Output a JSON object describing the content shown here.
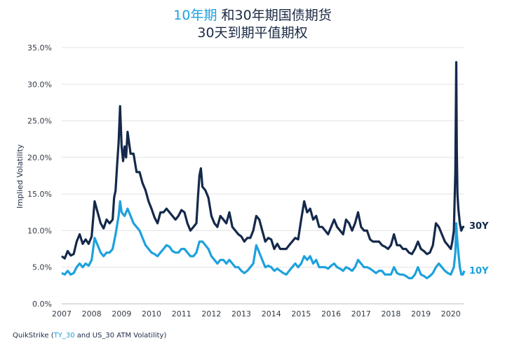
{
  "title": {
    "line1_highlight": "10年期",
    "line1_rest": " 和30年期国债期货",
    "line2": "30天到期平值期权"
  },
  "source": {
    "prefix": "QuikStrike (",
    "highlight": "TY_30",
    "suffix": " and US_30 ATM Volatility)"
  },
  "colors": {
    "series_30y": "#14294b",
    "series_10y": "#1da1dd",
    "grid": "#e3e3e3"
  },
  "chart_data": {
    "type": "line",
    "title": "10年期 和30年期国债期货 30天到期平值期权",
    "xlabel": "",
    "ylabel": "Implied Volatility",
    "xlim": [
      2007.0,
      2020.45
    ],
    "ylim": [
      0,
      35
    ],
    "x_ticks": [
      "2007",
      "2008",
      "2009",
      "2010",
      "2011",
      "2012",
      "2013",
      "2014",
      "2015",
      "2016",
      "2017",
      "2018",
      "2019",
      "2020"
    ],
    "y_ticks": [
      "0.0%",
      "5.0%",
      "10.0%",
      "15.0%",
      "20.0%",
      "25.0%",
      "30.0%",
      "35.0%"
    ],
    "grid": true,
    "series": [
      {
        "name": "30Y",
        "color": "#14294b",
        "points": [
          [
            2007.0,
            6.5
          ],
          [
            2007.1,
            6.2
          ],
          [
            2007.2,
            7.2
          ],
          [
            2007.3,
            6.6
          ],
          [
            2007.4,
            6.8
          ],
          [
            2007.5,
            8.5
          ],
          [
            2007.6,
            9.5
          ],
          [
            2007.7,
            8.2
          ],
          [
            2007.8,
            8.8
          ],
          [
            2007.9,
            8.2
          ],
          [
            2008.0,
            9.2
          ],
          [
            2008.1,
            14.0
          ],
          [
            2008.2,
            12.5
          ],
          [
            2008.3,
            11.0
          ],
          [
            2008.4,
            10.3
          ],
          [
            2008.5,
            11.5
          ],
          [
            2008.6,
            11.0
          ],
          [
            2008.7,
            11.5
          ],
          [
            2008.75,
            14.5
          ],
          [
            2008.8,
            15.5
          ],
          [
            2008.85,
            19.0
          ],
          [
            2008.9,
            22.0
          ],
          [
            2008.95,
            27.0
          ],
          [
            2009.0,
            21.5
          ],
          [
            2009.05,
            19.5
          ],
          [
            2009.1,
            21.5
          ],
          [
            2009.15,
            20.0
          ],
          [
            2009.2,
            23.5
          ],
          [
            2009.3,
            20.5
          ],
          [
            2009.4,
            20.5
          ],
          [
            2009.5,
            18.0
          ],
          [
            2009.6,
            18.0
          ],
          [
            2009.7,
            16.5
          ],
          [
            2009.8,
            15.5
          ],
          [
            2009.9,
            14.0
          ],
          [
            2010.0,
            13.0
          ],
          [
            2010.1,
            11.8
          ],
          [
            2010.2,
            11.0
          ],
          [
            2010.3,
            12.5
          ],
          [
            2010.4,
            12.5
          ],
          [
            2010.5,
            13.0
          ],
          [
            2010.6,
            12.5
          ],
          [
            2010.7,
            12.0
          ],
          [
            2010.8,
            11.5
          ],
          [
            2010.9,
            12.0
          ],
          [
            2011.0,
            12.8
          ],
          [
            2011.1,
            12.5
          ],
          [
            2011.2,
            11.0
          ],
          [
            2011.3,
            10.0
          ],
          [
            2011.4,
            10.5
          ],
          [
            2011.5,
            11.0
          ],
          [
            2011.55,
            14.5
          ],
          [
            2011.6,
            17.5
          ],
          [
            2011.65,
            18.5
          ],
          [
            2011.7,
            16.0
          ],
          [
            2011.8,
            15.5
          ],
          [
            2011.9,
            14.5
          ],
          [
            2012.0,
            12.0
          ],
          [
            2012.1,
            11.0
          ],
          [
            2012.2,
            10.5
          ],
          [
            2012.3,
            12.0
          ],
          [
            2012.4,
            11.5
          ],
          [
            2012.5,
            11.0
          ],
          [
            2012.6,
            12.5
          ],
          [
            2012.7,
            10.5
          ],
          [
            2012.8,
            10.0
          ],
          [
            2012.9,
            9.5
          ],
          [
            2013.0,
            9.2
          ],
          [
            2013.1,
            8.5
          ],
          [
            2013.2,
            9.0
          ],
          [
            2013.3,
            9.0
          ],
          [
            2013.4,
            10.0
          ],
          [
            2013.5,
            12.0
          ],
          [
            2013.6,
            11.5
          ],
          [
            2013.7,
            10.0
          ],
          [
            2013.8,
            8.5
          ],
          [
            2013.9,
            9.0
          ],
          [
            2014.0,
            8.8
          ],
          [
            2014.1,
            7.5
          ],
          [
            2014.2,
            8.2
          ],
          [
            2014.3,
            7.5
          ],
          [
            2014.4,
            7.5
          ],
          [
            2014.5,
            7.5
          ],
          [
            2014.6,
            8.0
          ],
          [
            2014.7,
            8.5
          ],
          [
            2014.8,
            9.0
          ],
          [
            2014.9,
            8.8
          ],
          [
            2015.0,
            11.5
          ],
          [
            2015.1,
            14.0
          ],
          [
            2015.2,
            12.5
          ],
          [
            2015.3,
            13.0
          ],
          [
            2015.4,
            11.5
          ],
          [
            2015.5,
            12.0
          ],
          [
            2015.6,
            10.5
          ],
          [
            2015.7,
            10.5
          ],
          [
            2015.8,
            10.0
          ],
          [
            2015.9,
            9.5
          ],
          [
            2016.0,
            10.5
          ],
          [
            2016.1,
            11.5
          ],
          [
            2016.2,
            10.5
          ],
          [
            2016.3,
            10.0
          ],
          [
            2016.4,
            9.5
          ],
          [
            2016.5,
            11.5
          ],
          [
            2016.6,
            11.0
          ],
          [
            2016.7,
            10.0
          ],
          [
            2016.8,
            11.0
          ],
          [
            2016.9,
            12.5
          ],
          [
            2017.0,
            10.5
          ],
          [
            2017.1,
            10.0
          ],
          [
            2017.2,
            10.0
          ],
          [
            2017.3,
            8.8
          ],
          [
            2017.4,
            8.5
          ],
          [
            2017.5,
            8.5
          ],
          [
            2017.6,
            8.5
          ],
          [
            2017.7,
            8.0
          ],
          [
            2017.8,
            7.8
          ],
          [
            2017.9,
            7.5
          ],
          [
            2018.0,
            8.0
          ],
          [
            2018.1,
            9.5
          ],
          [
            2018.2,
            8.0
          ],
          [
            2018.3,
            8.0
          ],
          [
            2018.4,
            7.5
          ],
          [
            2018.5,
            7.5
          ],
          [
            2018.6,
            7.0
          ],
          [
            2018.7,
            6.8
          ],
          [
            2018.8,
            7.5
          ],
          [
            2018.9,
            8.5
          ],
          [
            2019.0,
            7.5
          ],
          [
            2019.1,
            7.2
          ],
          [
            2019.2,
            6.8
          ],
          [
            2019.3,
            7.0
          ],
          [
            2019.4,
            8.0
          ],
          [
            2019.5,
            11.0
          ],
          [
            2019.6,
            10.5
          ],
          [
            2019.7,
            9.5
          ],
          [
            2019.8,
            8.5
          ],
          [
            2019.9,
            8.0
          ],
          [
            2020.0,
            7.5
          ],
          [
            2020.05,
            8.5
          ],
          [
            2020.1,
            10.0
          ],
          [
            2020.15,
            18.0
          ],
          [
            2020.18,
            33.0
          ],
          [
            2020.2,
            21.0
          ],
          [
            2020.22,
            15.0
          ],
          [
            2020.25,
            13.0
          ],
          [
            2020.3,
            11.0
          ],
          [
            2020.35,
            10.0
          ],
          [
            2020.4,
            10.5
          ],
          [
            2020.45,
            10.5
          ]
        ]
      },
      {
        "name": "10Y",
        "color": "#1da1dd",
        "points": [
          [
            2007.0,
            4.2
          ],
          [
            2007.1,
            4.0
          ],
          [
            2007.2,
            4.5
          ],
          [
            2007.3,
            4.0
          ],
          [
            2007.4,
            4.2
          ],
          [
            2007.5,
            5.0
          ],
          [
            2007.6,
            5.5
          ],
          [
            2007.7,
            5.0
          ],
          [
            2007.8,
            5.5
          ],
          [
            2007.9,
            5.2
          ],
          [
            2008.0,
            6.0
          ],
          [
            2008.1,
            9.0
          ],
          [
            2008.2,
            8.0
          ],
          [
            2008.3,
            7.0
          ],
          [
            2008.4,
            6.5
          ],
          [
            2008.5,
            7.0
          ],
          [
            2008.6,
            7.0
          ],
          [
            2008.7,
            7.5
          ],
          [
            2008.8,
            9.5
          ],
          [
            2008.9,
            12.0
          ],
          [
            2008.95,
            14.0
          ],
          [
            2009.0,
            12.5
          ],
          [
            2009.1,
            12.0
          ],
          [
            2009.2,
            13.0
          ],
          [
            2009.3,
            12.0
          ],
          [
            2009.4,
            11.0
          ],
          [
            2009.5,
            10.5
          ],
          [
            2009.6,
            10.0
          ],
          [
            2009.7,
            9.0
          ],
          [
            2009.8,
            8.0
          ],
          [
            2009.9,
            7.5
          ],
          [
            2010.0,
            7.0
          ],
          [
            2010.1,
            6.8
          ],
          [
            2010.2,
            6.5
          ],
          [
            2010.3,
            7.0
          ],
          [
            2010.4,
            7.5
          ],
          [
            2010.5,
            8.0
          ],
          [
            2010.6,
            7.8
          ],
          [
            2010.7,
            7.2
          ],
          [
            2010.8,
            7.0
          ],
          [
            2010.9,
            7.0
          ],
          [
            2011.0,
            7.5
          ],
          [
            2011.1,
            7.5
          ],
          [
            2011.2,
            7.0
          ],
          [
            2011.3,
            6.5
          ],
          [
            2011.4,
            6.5
          ],
          [
            2011.5,
            7.0
          ],
          [
            2011.6,
            8.5
          ],
          [
            2011.7,
            8.5
          ],
          [
            2011.8,
            8.0
          ],
          [
            2011.9,
            7.5
          ],
          [
            2012.0,
            6.5
          ],
          [
            2012.1,
            6.0
          ],
          [
            2012.2,
            5.5
          ],
          [
            2012.3,
            6.0
          ],
          [
            2012.4,
            6.0
          ],
          [
            2012.5,
            5.5
          ],
          [
            2012.6,
            6.0
          ],
          [
            2012.7,
            5.5
          ],
          [
            2012.8,
            5.0
          ],
          [
            2012.9,
            5.0
          ],
          [
            2013.0,
            4.5
          ],
          [
            2013.1,
            4.2
          ],
          [
            2013.2,
            4.5
          ],
          [
            2013.3,
            5.0
          ],
          [
            2013.4,
            5.5
          ],
          [
            2013.5,
            8.0
          ],
          [
            2013.6,
            7.0
          ],
          [
            2013.7,
            6.0
          ],
          [
            2013.8,
            5.0
          ],
          [
            2013.9,
            5.2
          ],
          [
            2014.0,
            5.0
          ],
          [
            2014.1,
            4.5
          ],
          [
            2014.2,
            4.8
          ],
          [
            2014.3,
            4.5
          ],
          [
            2014.4,
            4.2
          ],
          [
            2014.5,
            4.0
          ],
          [
            2014.6,
            4.5
          ],
          [
            2014.7,
            5.0
          ],
          [
            2014.8,
            5.5
          ],
          [
            2014.9,
            5.0
          ],
          [
            2015.0,
            5.5
          ],
          [
            2015.1,
            6.5
          ],
          [
            2015.2,
            6.0
          ],
          [
            2015.3,
            6.5
          ],
          [
            2015.4,
            5.5
          ],
          [
            2015.5,
            6.0
          ],
          [
            2015.6,
            5.0
          ],
          [
            2015.7,
            5.0
          ],
          [
            2015.8,
            5.0
          ],
          [
            2015.9,
            4.8
          ],
          [
            2016.0,
            5.2
          ],
          [
            2016.1,
            5.5
          ],
          [
            2016.2,
            5.0
          ],
          [
            2016.3,
            4.8
          ],
          [
            2016.4,
            4.5
          ],
          [
            2016.5,
            5.0
          ],
          [
            2016.6,
            4.8
          ],
          [
            2016.7,
            4.5
          ],
          [
            2016.8,
            5.0
          ],
          [
            2016.9,
            6.0
          ],
          [
            2017.0,
            5.5
          ],
          [
            2017.1,
            5.0
          ],
          [
            2017.2,
            5.0
          ],
          [
            2017.3,
            4.8
          ],
          [
            2017.4,
            4.5
          ],
          [
            2017.5,
            4.2
          ],
          [
            2017.6,
            4.5
          ],
          [
            2017.7,
            4.5
          ],
          [
            2017.8,
            4.0
          ],
          [
            2017.9,
            4.0
          ],
          [
            2018.0,
            4.0
          ],
          [
            2018.1,
            5.0
          ],
          [
            2018.2,
            4.2
          ],
          [
            2018.3,
            4.0
          ],
          [
            2018.4,
            4.0
          ],
          [
            2018.5,
            3.8
          ],
          [
            2018.6,
            3.5
          ],
          [
            2018.7,
            3.5
          ],
          [
            2018.8,
            4.0
          ],
          [
            2018.9,
            5.0
          ],
          [
            2019.0,
            4.0
          ],
          [
            2019.1,
            3.8
          ],
          [
            2019.2,
            3.5
          ],
          [
            2019.3,
            3.8
          ],
          [
            2019.4,
            4.2
          ],
          [
            2019.5,
            5.0
          ],
          [
            2019.6,
            5.5
          ],
          [
            2019.7,
            5.0
          ],
          [
            2019.8,
            4.5
          ],
          [
            2019.9,
            4.2
          ],
          [
            2020.0,
            4.0
          ],
          [
            2020.05,
            4.5
          ],
          [
            2020.1,
            5.0
          ],
          [
            2020.15,
            7.0
          ],
          [
            2020.18,
            11.0
          ],
          [
            2020.2,
            9.5
          ],
          [
            2020.25,
            7.0
          ],
          [
            2020.3,
            5.0
          ],
          [
            2020.35,
            4.0
          ],
          [
            2020.4,
            4.0
          ],
          [
            2020.45,
            4.5
          ]
        ]
      }
    ]
  }
}
